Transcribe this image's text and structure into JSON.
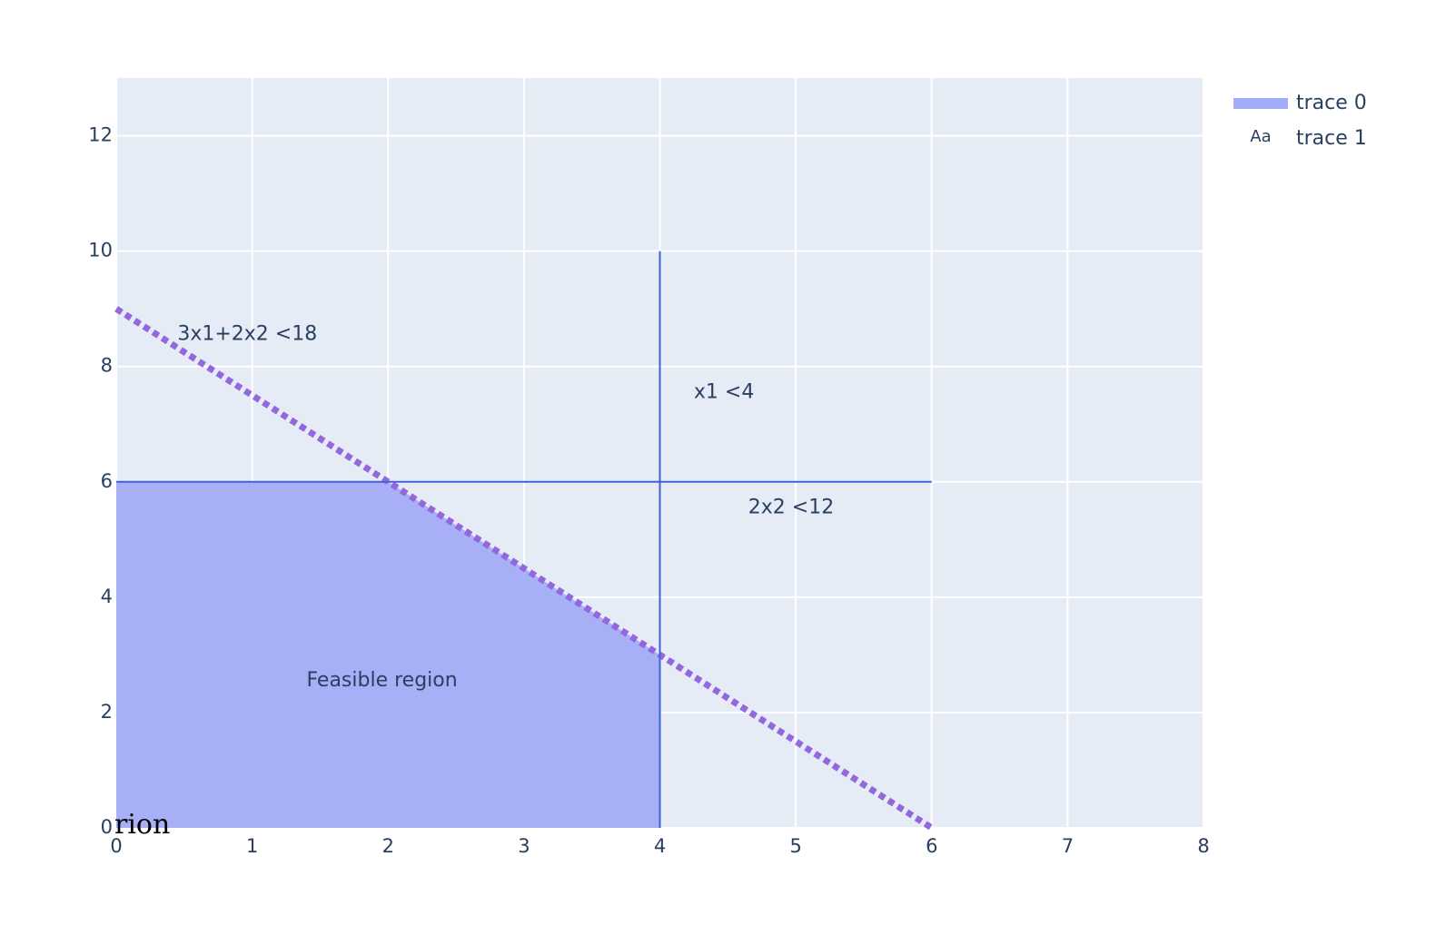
{
  "chart_data": {
    "type": "line",
    "xlim": [
      0,
      8
    ],
    "ylim": [
      0,
      13
    ],
    "x_ticks": [
      0,
      1,
      2,
      3,
      4,
      5,
      6,
      7,
      8
    ],
    "y_ticks": [
      0,
      2,
      4,
      6,
      8,
      10,
      12
    ],
    "grid": true,
    "legend_position": "top-right",
    "series": [
      {
        "name": "trace 0",
        "kind": "filled-area",
        "color": "#a3acf6",
        "points": [
          [
            0,
            0
          ],
          [
            0,
            6
          ],
          [
            2,
            6
          ],
          [
            4,
            3
          ],
          [
            4,
            0
          ]
        ]
      },
      {
        "name": "trace 1",
        "kind": "text"
      }
    ],
    "constraint_lines": [
      {
        "id": "line-3x1-2x2",
        "style": "dotted",
        "color": "#9467dd",
        "points": [
          [
            0,
            9
          ],
          [
            6,
            0
          ]
        ]
      },
      {
        "id": "line-x1",
        "style": "solid",
        "color": "#3f63d7",
        "points": [
          [
            4,
            0
          ],
          [
            4,
            10
          ]
        ]
      },
      {
        "id": "line-2x2",
        "style": "solid",
        "color": "#3f63d7",
        "points": [
          [
            0,
            6
          ],
          [
            6,
            6
          ]
        ]
      }
    ],
    "annotations": [
      {
        "text": "3x1+2x2 <18",
        "x": 0.45,
        "y": 8.55
      },
      {
        "text": "x1 <4",
        "x": 4.25,
        "y": 7.55
      },
      {
        "text": "2x2 <12",
        "x": 4.65,
        "y": 5.55
      },
      {
        "text": "Feasible region",
        "x": 1.4,
        "y": 2.55
      }
    ],
    "stray_text": "rion",
    "legend_sample_glyph": "Aa",
    "colors": {
      "plot_background": "#e5ecf6",
      "grid": "#ffffff",
      "text": "#2a3f5f"
    }
  }
}
